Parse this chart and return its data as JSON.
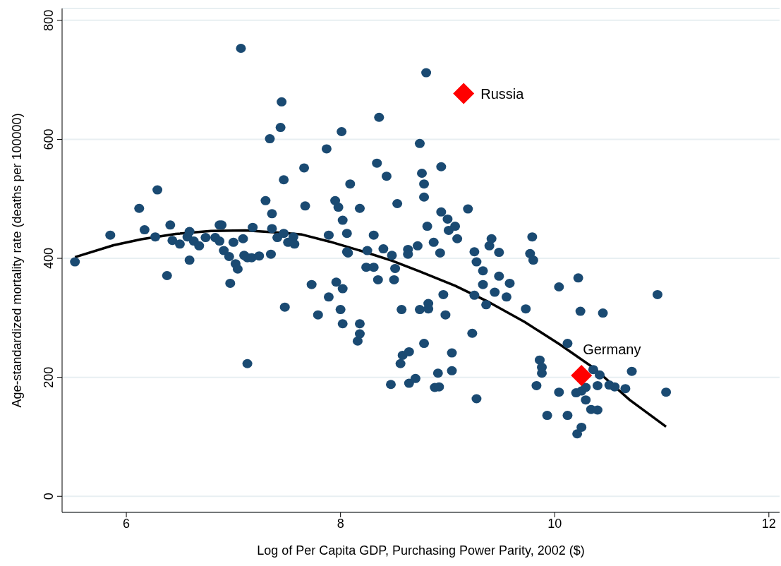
{
  "chart_data": {
    "type": "scatter",
    "xlabel": "Log of Per Capita GDP, Purchasing Power Parity, 2002 ($)",
    "ylabel": "Age-standardized mortality rate (deaths per 100000)",
    "xlim": [
      5.4,
      12.1
    ],
    "xticks": [
      6,
      8,
      10,
      12
    ],
    "ylim": [
      -27,
      820
    ],
    "yticks": [
      0,
      200,
      400,
      600,
      800
    ],
    "grid": "y",
    "marker": "circle",
    "series": [
      {
        "color": "#1a4a72",
        "x": [
          5.52,
          5.85,
          6.12,
          6.17,
          6.29,
          6.27,
          6.38,
          6.41,
          6.43,
          6.5,
          6.57,
          6.59,
          6.59,
          6.63,
          6.68,
          6.74,
          6.83,
          6.87,
          6.89,
          6.87,
          6.91,
          6.96,
          7.0,
          6.97,
          7.02,
          7.04,
          7.1,
          7.07,
          7.09,
          7.13,
          7.13,
          7.17,
          7.18,
          7.24,
          7.3,
          7.34,
          7.35,
          7.36,
          7.36,
          7.41,
          7.44,
          7.45,
          7.47,
          7.47,
          7.48,
          7.51,
          7.56,
          7.57,
          7.66,
          7.67,
          7.73,
          7.79,
          7.87,
          7.89,
          7.89,
          7.95,
          7.96,
          7.98,
          8.0,
          8.01,
          8.02,
          8.02,
          8.02,
          8.06,
          8.06,
          8.07,
          8.09,
          8.16,
          8.18,
          8.18,
          8.18,
          8.25,
          8.24,
          8.31,
          8.31,
          8.34,
          8.35,
          8.36,
          8.4,
          8.43,
          8.48,
          8.47,
          8.5,
          8.51,
          8.53,
          8.56,
          8.58,
          8.57,
          8.64,
          8.64,
          8.63,
          8.63,
          8.7,
          8.72,
          8.74,
          8.74,
          8.76,
          8.78,
          8.78,
          8.78,
          8.8,
          8.81,
          8.82,
          8.82,
          8.88,
          8.87,
          8.91,
          8.92,
          8.93,
          8.94,
          8.94,
          8.96,
          9.0,
          8.98,
          9.01,
          9.04,
          9.04,
          9.07,
          9.09,
          9.19,
          9.23,
          9.25,
          9.25,
          9.27,
          9.27,
          9.33,
          9.33,
          9.36,
          9.39,
          9.41,
          9.44,
          9.48,
          9.48,
          9.55,
          9.58,
          9.73,
          9.77,
          9.79,
          9.8,
          9.83,
          9.86,
          9.88,
          9.88,
          9.93,
          10.04,
          10.04,
          10.12,
          10.12,
          10.22,
          10.24,
          10.21,
          10.2,
          10.25,
          10.25,
          10.29,
          10.29,
          10.34,
          10.4,
          10.4,
          10.36,
          10.45,
          10.42,
          10.51,
          10.56,
          10.66,
          10.72,
          10.96,
          11.04
        ],
        "values": [
          394,
          439,
          484,
          448,
          515,
          436,
          371,
          456,
          430,
          424,
          436,
          445,
          397,
          429,
          421,
          435,
          435,
          456,
          456,
          429,
          413,
          403,
          427,
          358,
          391,
          382,
          405,
          753,
          433,
          401,
          223,
          401,
          452,
          404,
          497,
          601,
          407,
          475,
          450,
          435,
          620,
          663,
          442,
          532,
          318,
          427,
          436,
          424,
          552,
          488,
          356,
          305,
          584,
          439,
          335,
          497,
          360,
          486,
          314,
          613,
          464,
          349,
          290,
          442,
          411,
          409,
          525,
          261,
          273,
          290,
          484,
          413,
          385,
          385,
          439,
          560,
          364,
          637,
          416,
          538,
          405,
          188,
          364,
          383,
          492,
          223,
          237,
          314,
          243,
          190,
          415,
          407,
          198,
          421,
          314,
          593,
          543,
          525,
          503,
          257,
          712,
          454,
          324,
          315,
          183,
          427,
          207,
          184,
          409,
          554,
          478,
          339,
          466,
          305,
          447,
          241,
          211,
          454,
          433,
          483,
          274,
          411,
          338,
          394,
          164,
          379,
          356,
          322,
          421,
          433,
          343,
          410,
          370,
          335,
          358,
          315,
          408,
          436,
          397,
          186,
          229,
          217,
          207,
          136,
          352,
          175,
          136,
          257,
          367,
          311,
          105,
          174,
          177,
          116,
          162,
          183,
          146,
          186,
          145,
          213,
          308,
          204,
          187,
          184,
          181,
          210,
          339,
          175
        ]
      },
      {
        "type": "line",
        "color": "#000000",
        "marker": "none",
        "x": [
          5.52,
          5.88,
          6.14,
          6.46,
          6.79,
          7.11,
          7.44,
          7.64,
          7.9,
          8.22,
          8.48,
          8.74,
          9.07,
          9.39,
          9.72,
          10.05,
          10.37,
          10.7,
          11.04
        ],
        "values": [
          402,
          422,
          432,
          441,
          446,
          447,
          443,
          440,
          428,
          411,
          396,
          378,
          354,
          326,
          293,
          255,
          215,
          162,
          117
        ]
      },
      {
        "name": "Russia",
        "color": "#ff0000",
        "marker": "diamond",
        "x": [
          9.15
        ],
        "values": [
          677
        ]
      },
      {
        "name": "Germany",
        "color": "#ff0000",
        "marker": "diamond",
        "x": [
          10.25
        ],
        "values": [
          203
        ]
      }
    ]
  }
}
